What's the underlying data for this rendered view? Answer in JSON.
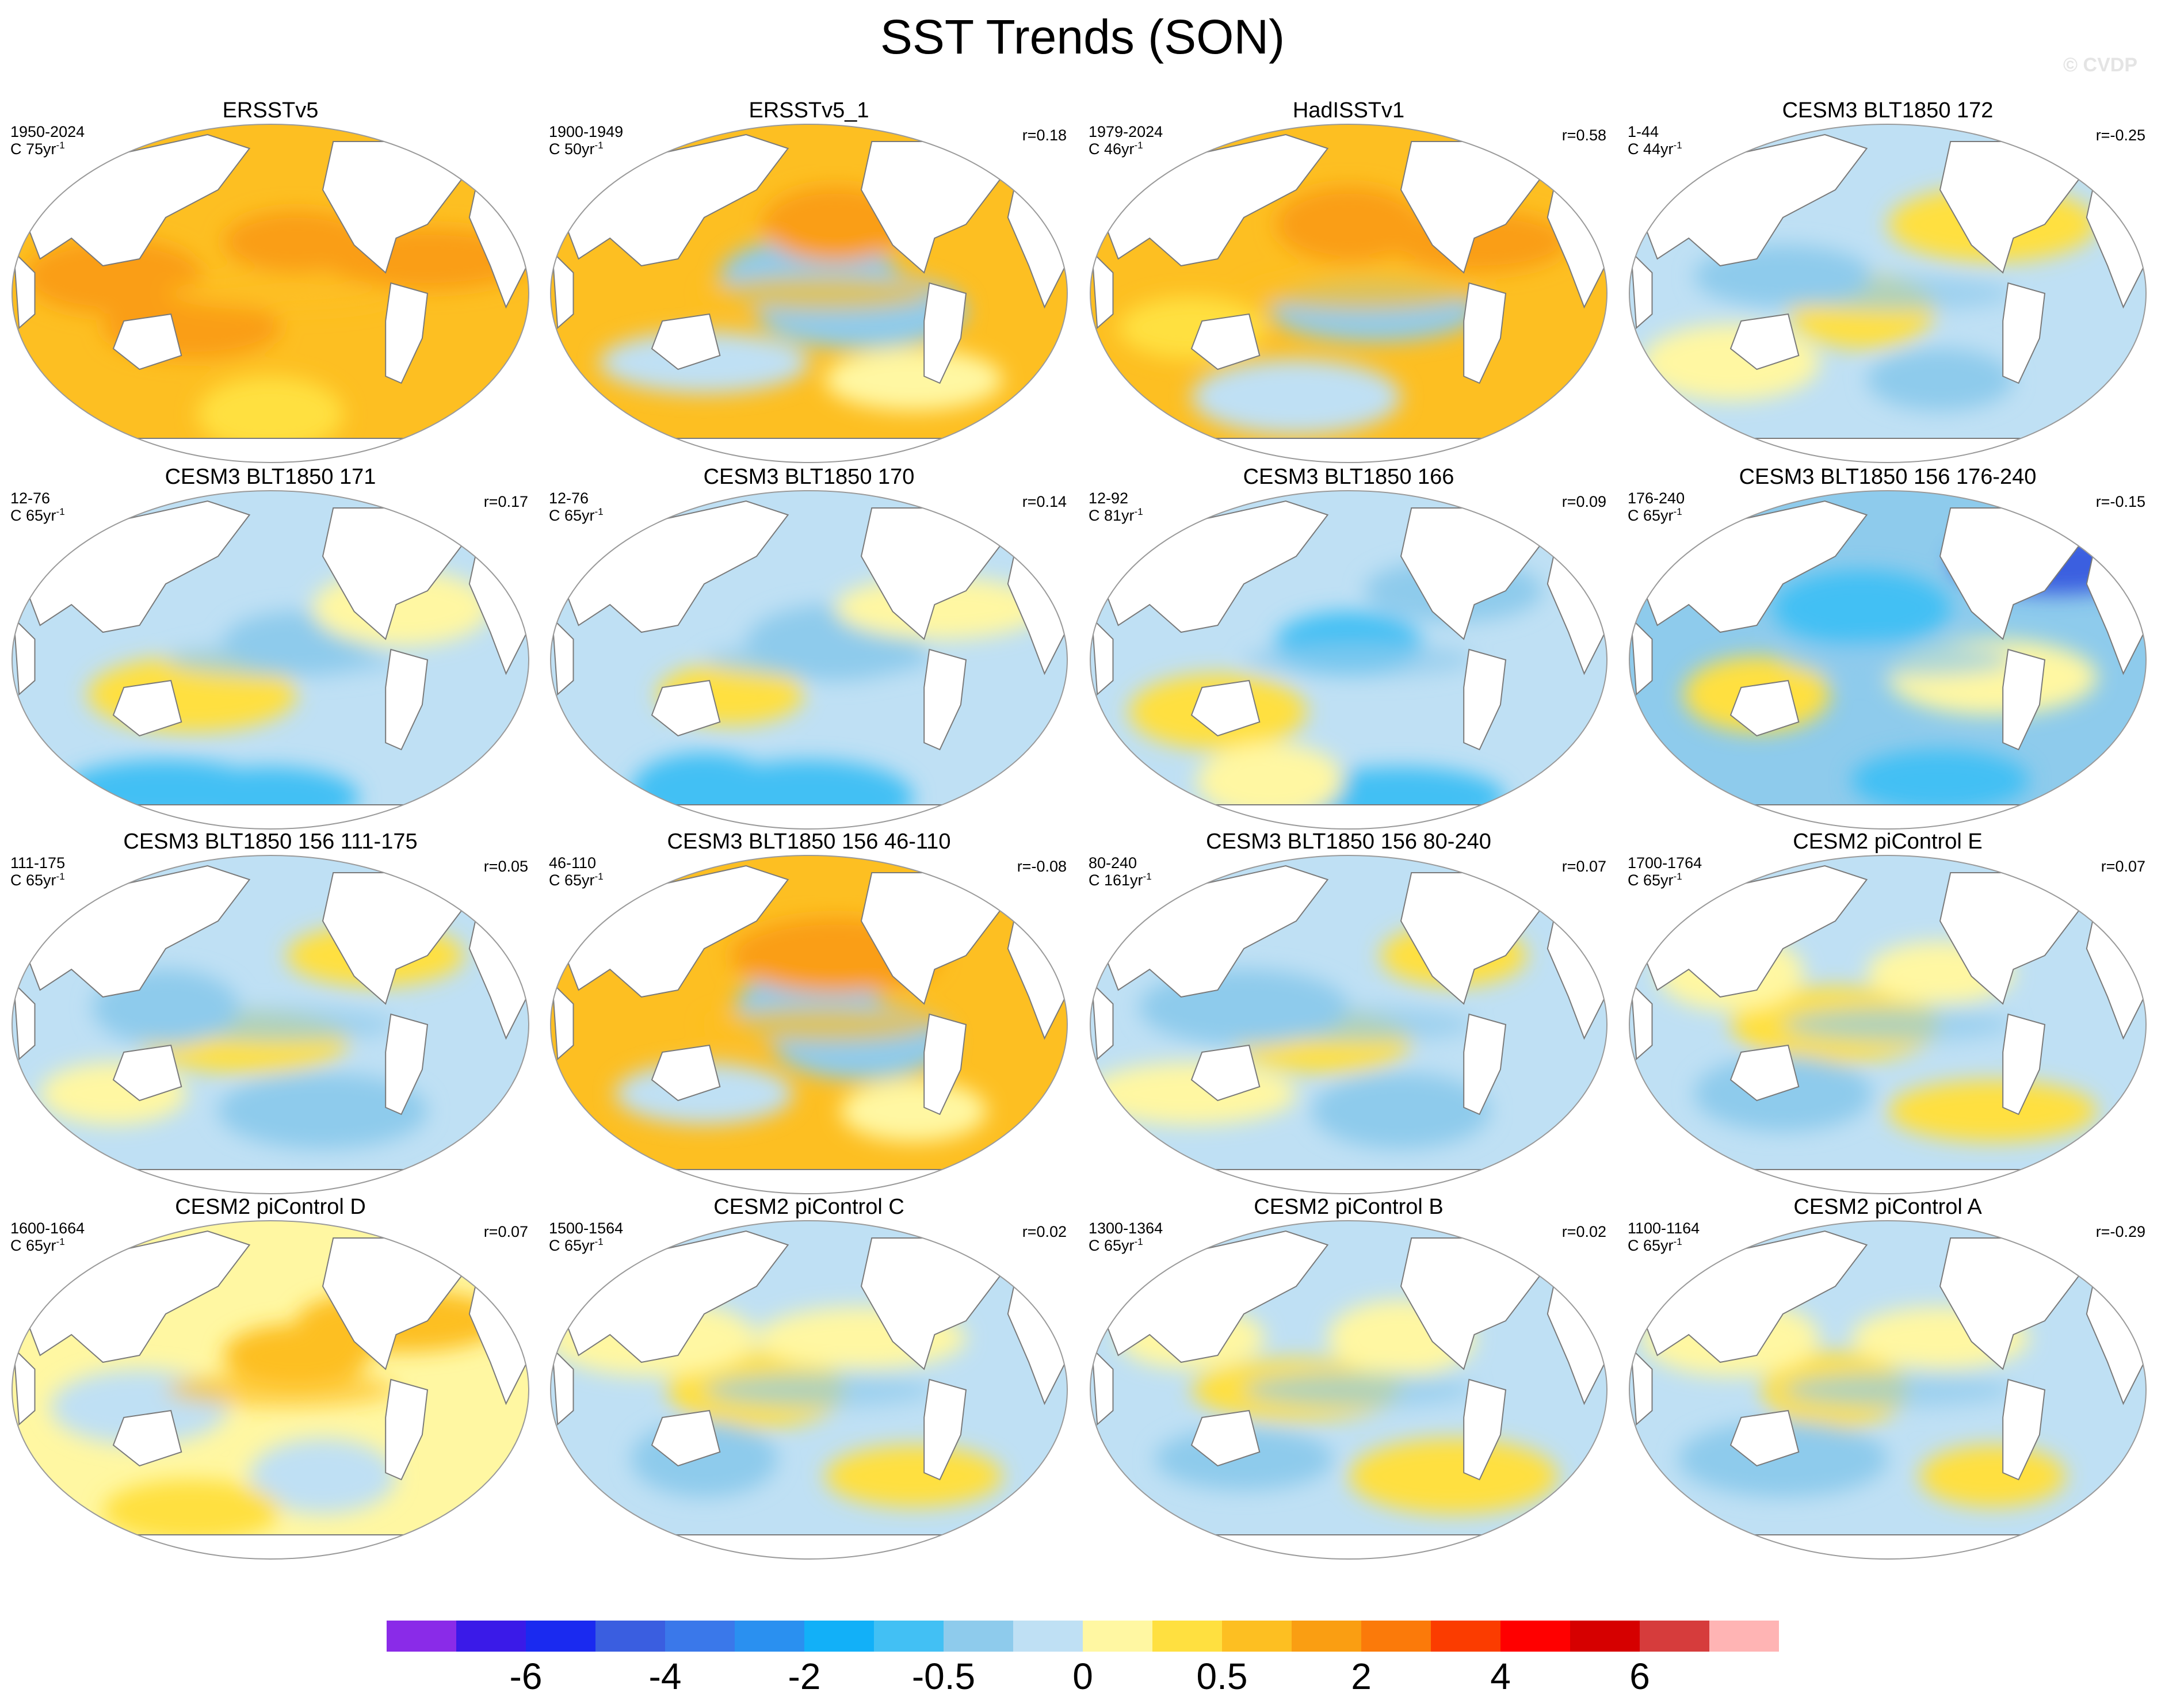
{
  "title": "SST Trends (SON)",
  "watermark": "© CVDP",
  "colors": {
    "land": "#ffffff",
    "coast": "#7a7a7a",
    "outline": "#9a9a9a"
  },
  "panels": [
    {
      "title": "ERSSTv5",
      "period": "1950-2024",
      "clen": "C 75yr",
      "clen_exp": "-1",
      "r": "",
      "pattern": "warm_strong"
    },
    {
      "title": "ERSSTv5_1",
      "period": "1900-1949",
      "clen": "C 50yr",
      "clen_exp": "-1",
      "r": "r=0.18",
      "pattern": "warm_mixed"
    },
    {
      "title": "HadISSTv1",
      "period": "1979-2024",
      "clen": "C 46yr",
      "clen_exp": "-1",
      "r": "r=0.58",
      "pattern": "warm_lanina"
    },
    {
      "title": "CESM3 BLT1850 172",
      "period": "1-44",
      "clen": "C 44yr",
      "clen_exp": "-1",
      "r": "r=-0.25",
      "pattern": "cool_mixed"
    },
    {
      "title": "CESM3 BLT1850 171",
      "period": "12-76",
      "clen": "C 65yr",
      "clen_exp": "-1",
      "r": "r=0.17",
      "pattern": "cool_south"
    },
    {
      "title": "CESM3 BLT1850 170",
      "period": "12-76",
      "clen": "C 65yr",
      "clen_exp": "-1",
      "r": "r=0.14",
      "pattern": "cool_south"
    },
    {
      "title": "CESM3 BLT1850 166",
      "period": "12-92",
      "clen": "C 81yr",
      "clen_exp": "-1",
      "r": "r=0.09",
      "pattern": "cool_east"
    },
    {
      "title": "CESM3 BLT1850 156 176-240",
      "period": "176-240",
      "clen": "C 65yr",
      "clen_exp": "-1",
      "r": "r=-0.15",
      "pattern": "cool_strong"
    },
    {
      "title": "CESM3 BLT1850 156 111-175",
      "period": "111-175",
      "clen": "C 65yr",
      "clen_exp": "-1",
      "r": "r=0.05",
      "pattern": "cool_mixed"
    },
    {
      "title": "CESM3 BLT1850 156 46-110",
      "period": "46-110",
      "clen": "C 65yr",
      "clen_exp": "-1",
      "r": "r=-0.08",
      "pattern": "warm_mixed"
    },
    {
      "title": "CESM3 BLT1850 156 80-240",
      "period": "80-240",
      "clen": "C 161yr",
      "clen_exp": "-1",
      "r": "r=0.07",
      "pattern": "cool_mixed"
    },
    {
      "title": "CESM2 piControl E",
      "period": "1700-1764",
      "clen": "C 65yr",
      "clen_exp": "-1",
      "r": "r=0.07",
      "pattern": "mixed"
    },
    {
      "title": "CESM2 piControl D",
      "period": "1600-1664",
      "clen": "C 65yr",
      "clen_exp": "-1",
      "r": "r=0.07",
      "pattern": "warm_weak"
    },
    {
      "title": "CESM2 piControl C",
      "period": "1500-1564",
      "clen": "C 65yr",
      "clen_exp": "-1",
      "r": "r=0.02",
      "pattern": "mixed"
    },
    {
      "title": "CESM2 piControl B",
      "period": "1300-1364",
      "clen": "C 65yr",
      "clen_exp": "-1",
      "r": "r=0.02",
      "pattern": "mixed"
    },
    {
      "title": "CESM2 piControl A",
      "period": "1100-1164",
      "clen": "C 65yr",
      "clen_exp": "-1",
      "r": "r=-0.29",
      "pattern": "mixed"
    }
  ],
  "colorbar": {
    "colors": [
      "#8a2be8",
      "#3a1ae8",
      "#1a2af0",
      "#3a5ee0",
      "#3a78ea",
      "#2a90f0",
      "#12b0f8",
      "#42c0f4",
      "#8ecbec",
      "#bfe0f4",
      "#fff7a2",
      "#ffe040",
      "#fdbf22",
      "#fa9e12",
      "#fb7a0a",
      "#fb3c00",
      "#ff0000",
      "#d60000",
      "#d63c3c",
      "#ffb4b4"
    ],
    "labels": [
      "-6",
      "-4",
      "-2",
      "-0.5",
      "0",
      "0.5",
      "2",
      "4",
      "6"
    ]
  }
}
